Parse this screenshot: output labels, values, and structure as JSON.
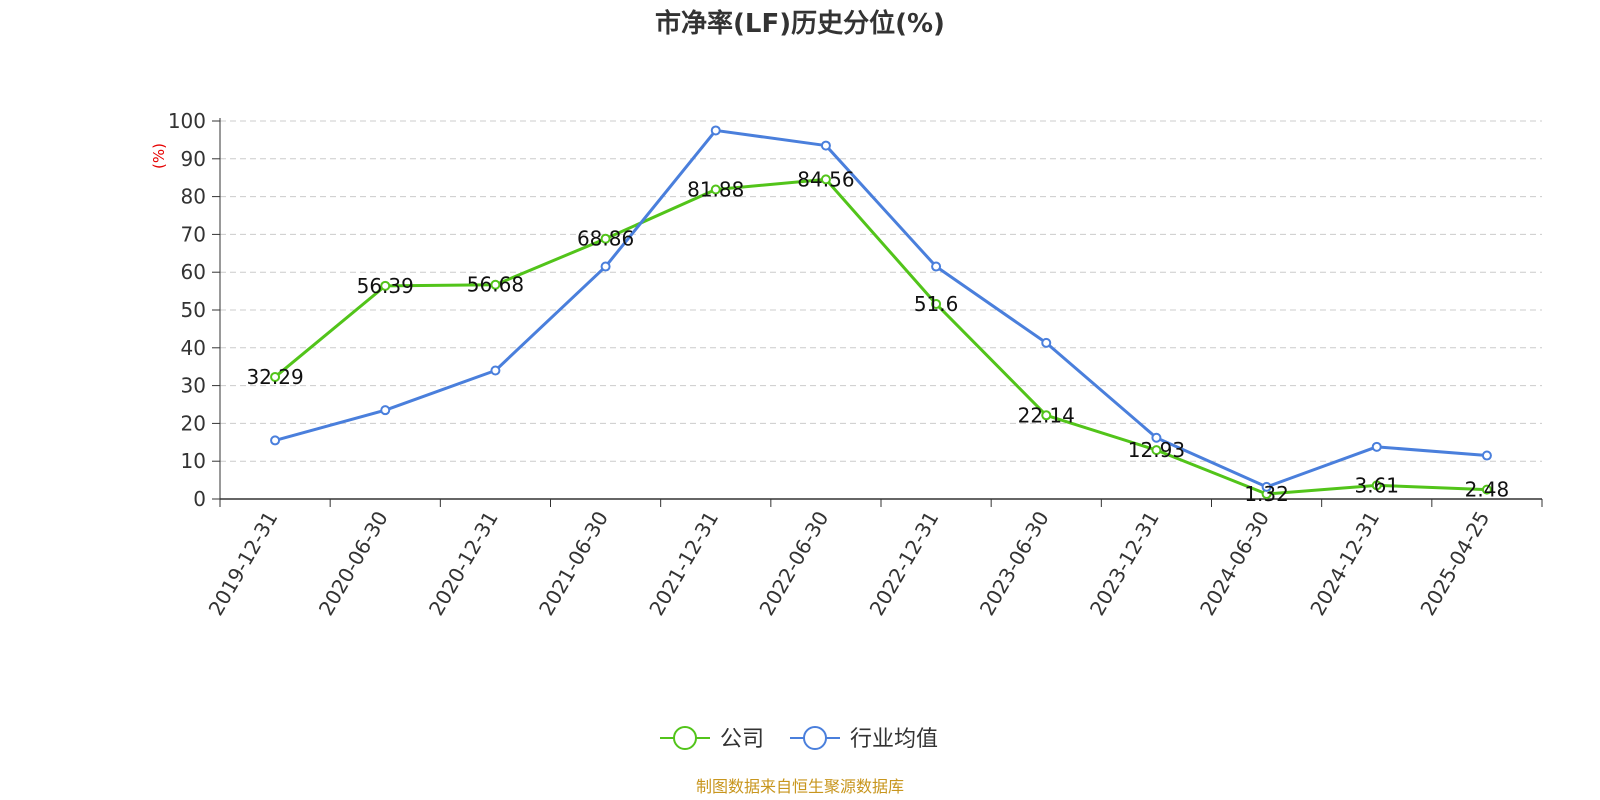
{
  "chart_data": {
    "type": "line",
    "title": "市净率(LF)历史分位(%)",
    "y_unit_label": "(%)",
    "categories": [
      "2019-12-31",
      "2020-06-30",
      "2020-12-31",
      "2021-06-30",
      "2021-12-31",
      "2022-06-30",
      "2022-12-31",
      "2023-06-30",
      "2023-12-31",
      "2024-06-30",
      "2024-12-31",
      "2025-04-25"
    ],
    "ylim": [
      0,
      100
    ],
    "y_ticks": [
      0,
      10,
      20,
      30,
      40,
      50,
      60,
      70,
      80,
      90,
      100
    ],
    "grid": true,
    "legend_position": "bottom-center",
    "series": [
      {
        "name": "公司",
        "color": "#52c41a",
        "values": [
          32.29,
          56.39,
          56.68,
          68.86,
          81.88,
          84.56,
          51.6,
          22.14,
          12.93,
          1.32,
          3.61,
          2.48
        ],
        "labels": [
          "32.29",
          "56.39",
          "56.68",
          "68.86",
          "81.88",
          "84.56",
          "51.6",
          "22.14",
          "12.93",
          "1.32",
          "3.61",
          "2.48"
        ]
      },
      {
        "name": "行业均值",
        "color": "#4a7fdc",
        "values": [
          15.5,
          23.5,
          34,
          61.5,
          97.5,
          93.5,
          61.5,
          41.3,
          16.2,
          3.2,
          13.8,
          11.5
        ]
      }
    ]
  },
  "source": "制图数据来自恒生聚源数据库"
}
